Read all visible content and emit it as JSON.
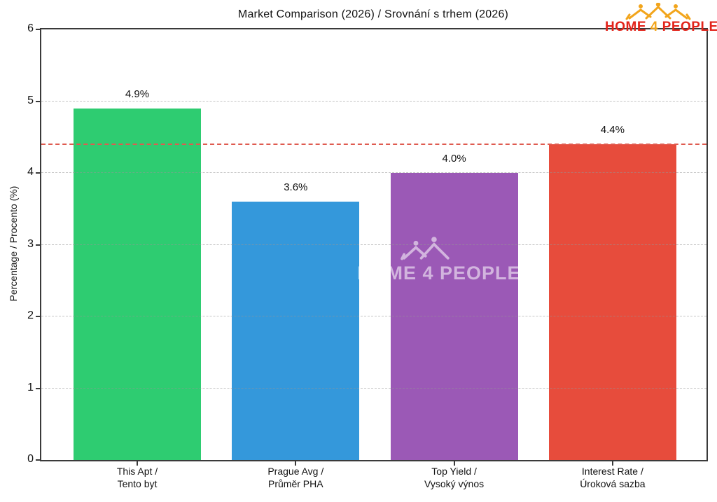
{
  "title": "Market Comparison (2026) / Srovnání s trhem (2026)",
  "logo": {
    "home": "HOME",
    "four": "4",
    "people": "PEOPLE",
    "text_color": "#e2231a",
    "accent_color": "#f2a51c"
  },
  "watermark": {
    "text": "HOME 4 PEOPLE"
  },
  "chart_data": {
    "type": "bar",
    "title": "Market Comparison (2026) / Srovnání s trhem (2026)",
    "xlabel": "",
    "ylabel": "Percentage / Procento (%)",
    "ylim": [
      0,
      6
    ],
    "yticks": [
      0,
      1,
      2,
      3,
      4,
      5,
      6
    ],
    "grid": "horizontal-dashed",
    "legend": "none",
    "threshold_line": {
      "value": 4.4,
      "color": "#df5b50",
      "style": "dashed"
    },
    "categories": [
      "This Apt / Tento byt",
      "Prague Avg / Průměr PHA",
      "Top Yield / Vysoký výnos",
      "Interest Rate / Úroková sazba"
    ],
    "values": [
      4.9,
      3.6,
      4.0,
      4.4
    ],
    "bars": [
      {
        "label_lines": [
          "This Apt /",
          "Tento byt"
        ],
        "value": 4.9,
        "value_label": "4.9%",
        "color": "#2ecc71"
      },
      {
        "label_lines": [
          "Prague Avg /",
          "Průměr PHA"
        ],
        "value": 3.6,
        "value_label": "3.6%",
        "color": "#3498db"
      },
      {
        "label_lines": [
          "Top Yield /",
          "Vysoký výnos"
        ],
        "value": 4.0,
        "value_label": "4.0%",
        "color": "#9b59b6"
      },
      {
        "label_lines": [
          "Interest Rate /",
          "Úroková sazba"
        ],
        "value": 4.4,
        "value_label": "4.4%",
        "color": "#e74c3c"
      }
    ]
  }
}
